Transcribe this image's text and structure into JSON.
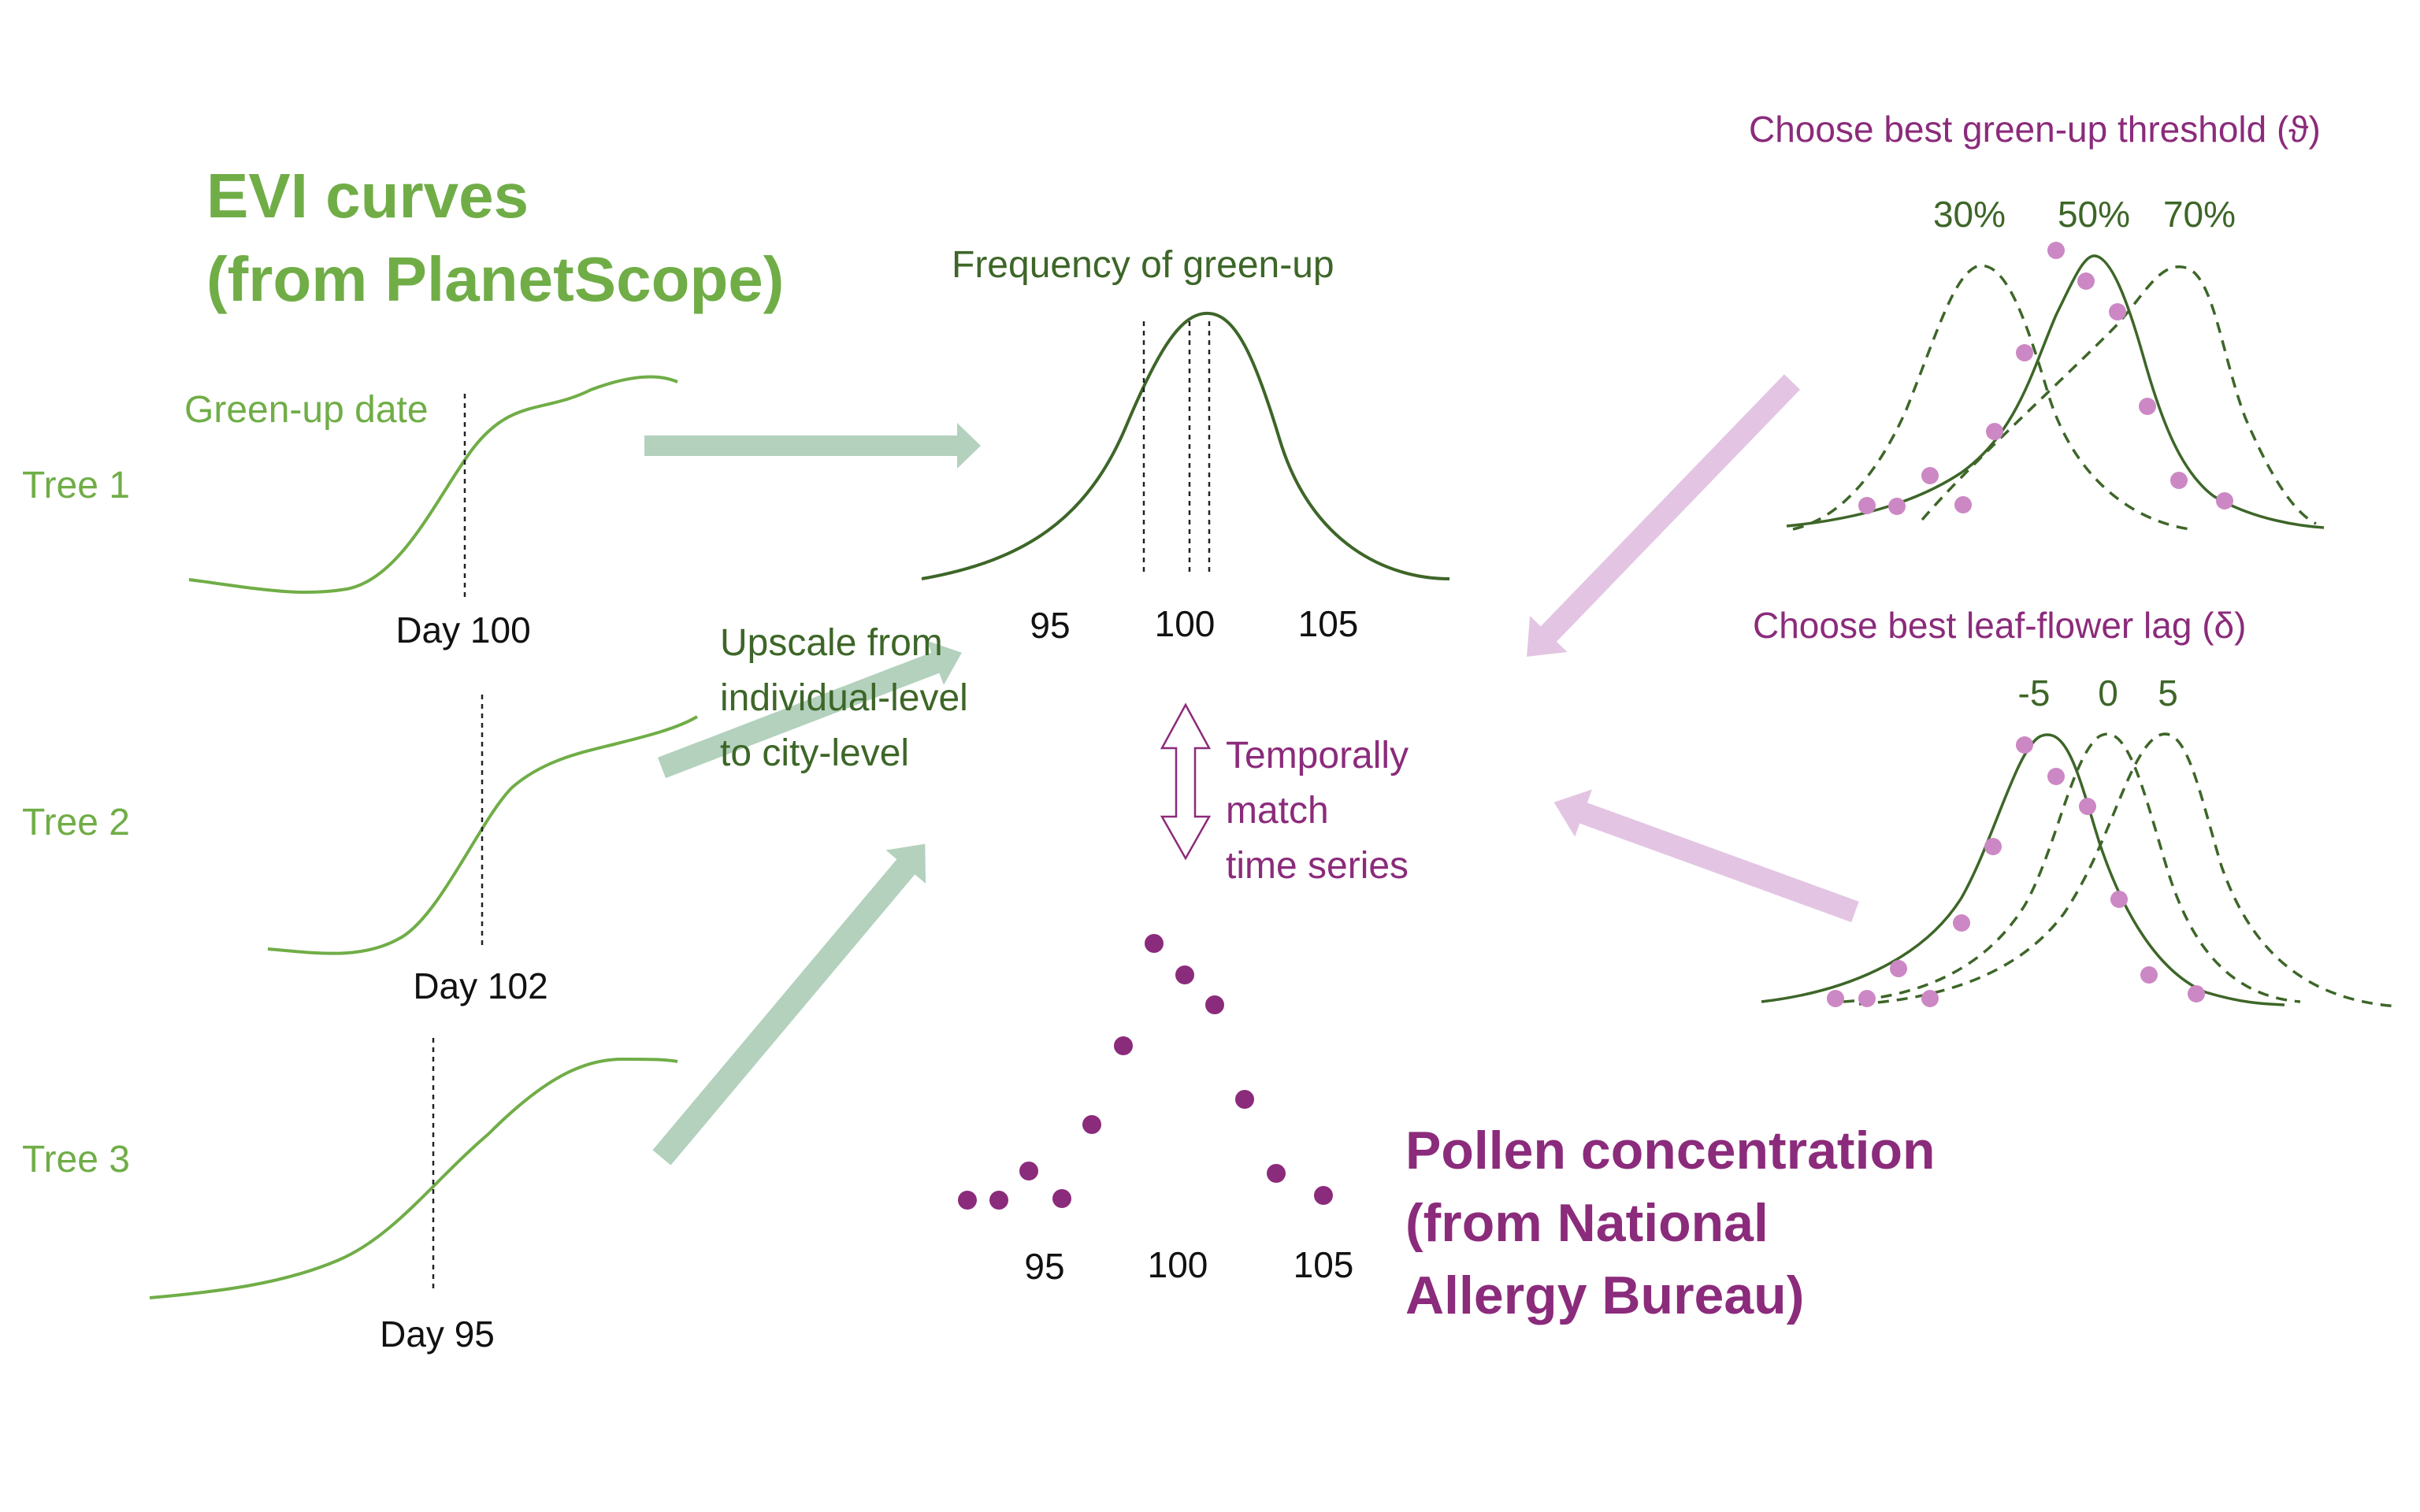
{
  "colors": {
    "light_green": "#70ad47",
    "dark_green": "#3d6628",
    "arrow_green": "#b3d1bd",
    "magenta": "#8b2b7b",
    "light_magenta": "#d9b3d9",
    "pink_point": "#cc88c4",
    "black": "#111111"
  },
  "left": {
    "title_line1": "EVI curves",
    "title_line2": "(from PlanetScope)",
    "greenup_label": "Green-up date",
    "trees": [
      {
        "label": "Tree 1",
        "day_label": "Day 100"
      },
      {
        "label": "Tree 2",
        "day_label": "Day 102"
      },
      {
        "label": "Tree 3",
        "day_label": "Day 95"
      }
    ]
  },
  "middle": {
    "frequency_title": "Frequency of green-up",
    "frequency_ticks": [
      "95",
      "100",
      "105"
    ],
    "upscale_lines": [
      "Upscale from",
      "individual-level",
      "to city-level"
    ],
    "match_lines": [
      "Temporally",
      "match",
      "time series"
    ],
    "pollen_ticks": [
      "95",
      "100",
      "105"
    ]
  },
  "pollen": {
    "title_lines": [
      "Pollen concentration",
      "(from National",
      "Allergy Bureau)"
    ]
  },
  "right": {
    "threshold_title": "Choose best green-up threshold (ϑ)",
    "threshold_labels": [
      "30%",
      "50%",
      "70%"
    ],
    "lag_title": "Choose best leaf-flower lag (δ)",
    "lag_labels": [
      "-5",
      "0",
      "5"
    ]
  },
  "icons": {
    "double_arrow": "up-down-double-arrow-icon",
    "flow_arrows": "right-arrow-icon"
  }
}
